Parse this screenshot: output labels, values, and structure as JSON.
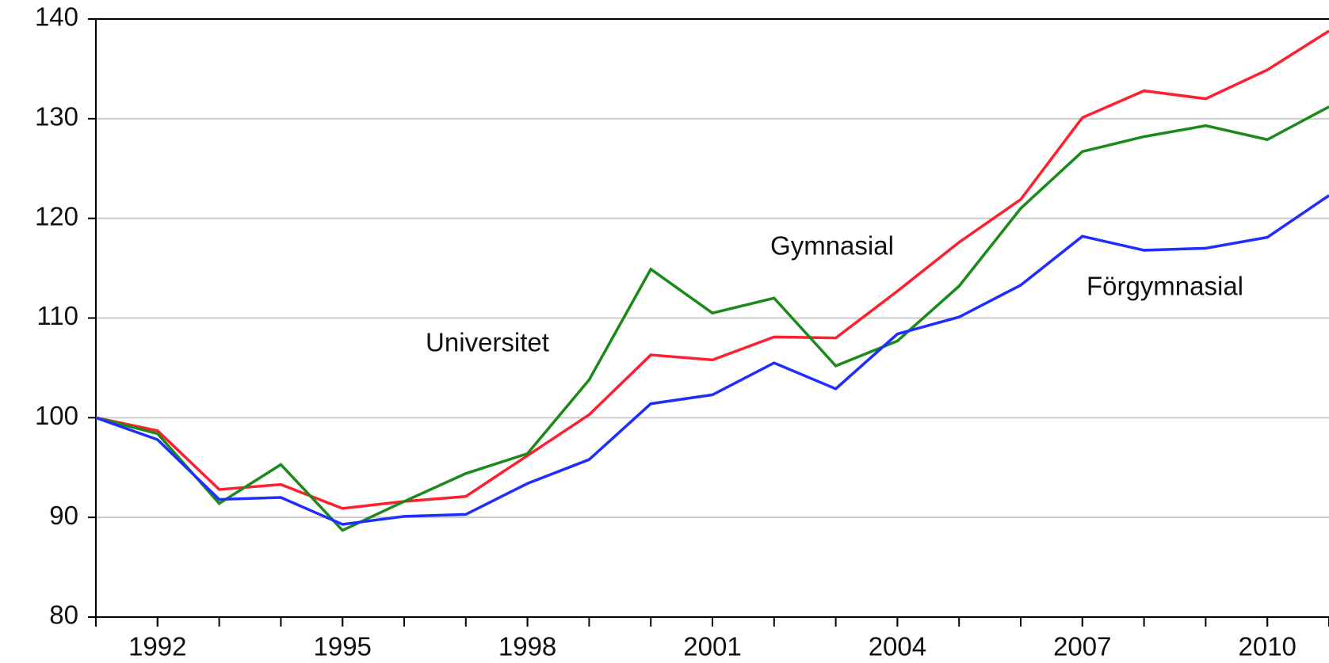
{
  "chart_data": {
    "type": "line",
    "x": [
      1991,
      1992,
      1993,
      1994,
      1995,
      1996,
      1997,
      1998,
      1999,
      2000,
      2001,
      2002,
      2003,
      2004,
      2005,
      2006,
      2007,
      2008,
      2009,
      2010,
      2011
    ],
    "xlim": [
      1991,
      2011
    ],
    "xticks": [
      1992,
      1995,
      1998,
      2001,
      2004,
      2007,
      2010
    ],
    "ylim": [
      80,
      140
    ],
    "yticks": [
      80,
      90,
      100,
      110,
      120,
      130,
      140
    ],
    "grid": true,
    "series": [
      {
        "name": "Gymnasial",
        "color": "#ff1f2e",
        "values": [
          100,
          98.7,
          92.8,
          93.3,
          90.9,
          91.6,
          92.1,
          96.2,
          100.3,
          106.3,
          105.8,
          108.1,
          108.0,
          112.7,
          117.6,
          121.9,
          130.1,
          132.8,
          132.0,
          134.9,
          138.8
        ]
      },
      {
        "name": "Universitet",
        "color": "#1a8a1a",
        "values": [
          100,
          98.4,
          91.4,
          95.3,
          88.7,
          91.6,
          94.4,
          96.4,
          103.8,
          114.9,
          110.5,
          112.0,
          105.2,
          107.7,
          113.2,
          121.0,
          126.7,
          128.2,
          129.3,
          127.9,
          131.2
        ]
      },
      {
        "name": "Förgymnasial",
        "color": "#1f2eff",
        "values": [
          100,
          97.8,
          91.8,
          92.0,
          89.3,
          90.1,
          90.3,
          93.4,
          95.8,
          101.4,
          102.3,
          105.5,
          102.9,
          108.4,
          110.1,
          113.3,
          118.2,
          116.8,
          117.0,
          118.1,
          122.3
        ]
      }
    ]
  }
}
